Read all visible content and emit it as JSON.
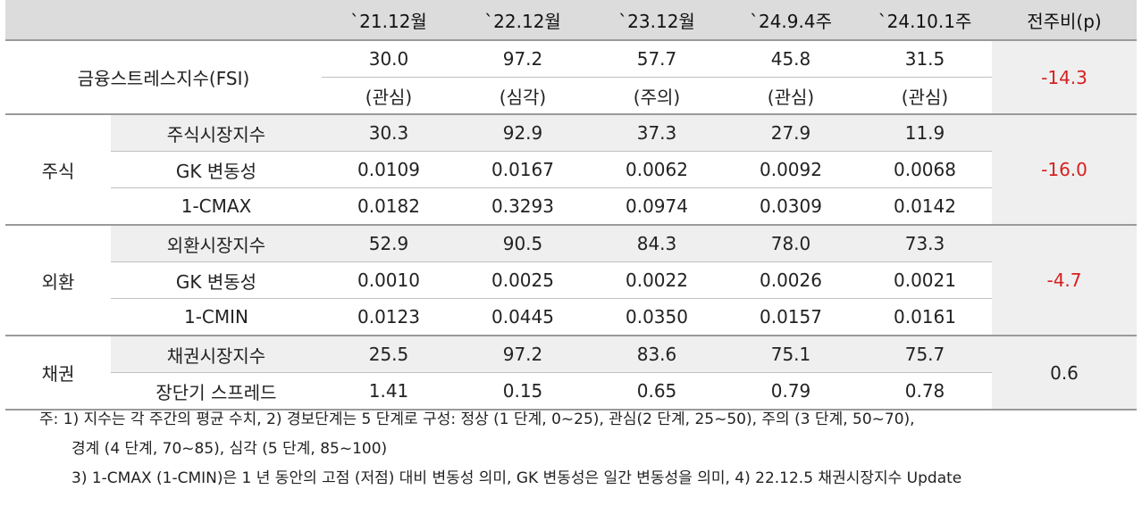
{
  "header": {
    "cols": [
      "`21.12월",
      "`22.12월",
      "`23.12월",
      "`24.9.4주",
      "`24.10.1주"
    ],
    "change": "전주비(p)"
  },
  "fsi": {
    "label": "금융스트레스지수(FSI)",
    "values": [
      "30.0",
      "97.2",
      "57.7",
      "45.8",
      "31.5"
    ],
    "levels": [
      "(관심)",
      "(심각)",
      "(주의)",
      "(관심)",
      "(관심)"
    ],
    "change": "-14.3"
  },
  "groups": [
    {
      "name": "주식",
      "change": "-16.0",
      "rows": [
        {
          "label": "주식시장지수",
          "values": [
            "30.3",
            "92.9",
            "37.3",
            "27.9",
            "11.9"
          ]
        },
        {
          "label": "GK 변동성",
          "values": [
            "0.0109",
            "0.0167",
            "0.0062",
            "0.0092",
            "0.0068"
          ]
        },
        {
          "label": "1-CMAX",
          "values": [
            "0.0182",
            "0.3293",
            "0.0974",
            "0.0309",
            "0.0142"
          ]
        }
      ]
    },
    {
      "name": "외환",
      "change": "-4.7",
      "rows": [
        {
          "label": "외환시장지수",
          "values": [
            "52.9",
            "90.5",
            "84.3",
            "78.0",
            "73.3"
          ]
        },
        {
          "label": "GK 변동성",
          "values": [
            "0.0010",
            "0.0025",
            "0.0022",
            "0.0026",
            "0.0021"
          ]
        },
        {
          "label": "1-CMIN",
          "values": [
            "0.0123",
            "0.0445",
            "0.0350",
            "0.0157",
            "0.0161"
          ]
        }
      ]
    },
    {
      "name": "채권",
      "change": "0.6",
      "rows": [
        {
          "label": "채권시장지수",
          "values": [
            "25.5",
            "97.2",
            "83.6",
            "75.1",
            "75.7"
          ]
        },
        {
          "label": "장단기 스프레드",
          "values": [
            "1.41",
            "0.15",
            "0.65",
            "0.79",
            "0.78"
          ]
        }
      ]
    }
  ],
  "notes": [
    "주: 1) 지수는 각 주간의 평균 수치, 2) 경보단계는 5 단계로 구성: 정상 (1 단계, 0~25), 관심(2 단계, 25~50), 주의 (3 단계, 50~70),",
    "경계 (4 단계, 70~85), 심각 (5 단계, 85~100)",
    "3) 1-CMAX (1-CMIN)은 1 년 동안의 고점 (저점) 대비 변동성 의미, GK 변동성은 일간 변동성을 의미, 4) 22.12.5 채권시장지수 Update"
  ],
  "colors": {
    "negative": "#d62020",
    "header_bg": "#dcdcdc",
    "shade_bg": "#efefef"
  }
}
